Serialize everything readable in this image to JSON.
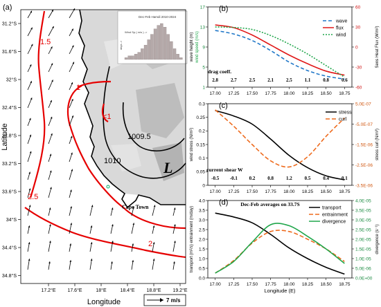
{
  "panels": {
    "a": {
      "label": "(a)",
      "xlabel": "Longitude",
      "ylabel": "Latitude",
      "xticks": [
        "17.2°E",
        "17.6°E",
        "18°E",
        "18.4°E",
        "18.8°E",
        "19.2°E"
      ],
      "yticks": [
        "31.2°S",
        "31.6°S",
        "32°S",
        "32.4°S",
        "32.8°S",
        "33.2°S",
        "33.6°S",
        "34°S",
        "34.4°S",
        "34.8°S"
      ],
      "contour_labels": [
        "1.5",
        "1",
        "<1",
        "2.5",
        "2",
        "1010",
        "1009.5"
      ],
      "low_label": "L",
      "place": "Cape Town",
      "scale_label": "7 m/s",
      "inset": {
        "title": "Dec-Feb Hamdi 2010-2024",
        "xlabel": "Wind Sp  ( m/s ) ->",
        "ylabel": "days ->"
      }
    },
    "b": {
      "label": "(b)",
      "drag_title": "drag coeff.",
      "drag_values": [
        "2.8",
        "2.7",
        "2.5",
        "2.1",
        "2.5",
        "1.1",
        "0.8",
        "0.6"
      ]
    },
    "c": {
      "label": "(c)",
      "shear_title": "current shear W",
      "shear_values": [
        "-0.5",
        "-0.1",
        "0.2",
        "0.8",
        "1.2",
        "0.5",
        "0.4",
        "0.1"
      ]
    },
    "d": {
      "label": "(d)",
      "title": "Dec-Feb averages on 33.7S"
    }
  },
  "chart_data": [
    {
      "type": "line",
      "panel": "b",
      "x": [
        17.0,
        17.25,
        17.5,
        17.75,
        18.0,
        18.25,
        18.5,
        18.75
      ],
      "xlim": [
        16.9,
        18.85
      ],
      "xticks": [
        "17.00",
        "17.25",
        "17.50",
        "17.75",
        "18.00",
        "18.25",
        "18.50",
        "18.75"
      ],
      "ylabel_left": "wave height (m)",
      "ylabel_left2": "wind speed (m/s)",
      "ylabel_right": "Sens Heat Flux (W/m²)",
      "ylim_left": [
        1,
        17
      ],
      "yticks_left": [
        "1",
        "5",
        "9",
        "13",
        "17"
      ],
      "ylim_right": [
        -60,
        60
      ],
      "yticks_right": [
        "-60",
        "-30",
        "0",
        "30",
        "60"
      ],
      "series": [
        {
          "name": "wave",
          "axis": "left",
          "color": "#1f77c8",
          "dash": "5,3",
          "values": [
            12.3,
            11.6,
            10.3,
            8.3,
            6.0,
            4.3,
            3.2,
            2.6
          ]
        },
        {
          "name": "flux",
          "axis": "right",
          "color": "#e01818",
          "dash": "",
          "values": [
            33,
            29,
            18,
            3,
            -12,
            -25,
            -36,
            -42
          ]
        },
        {
          "name": "wind",
          "axis": "left",
          "color": "#1fa64a",
          "dash": "2,2",
          "values": [
            13.0,
            12.9,
            12.5,
            11.3,
            9.6,
            7.6,
            5.3,
            3.0
          ]
        }
      ]
    },
    {
      "type": "line",
      "panel": "c",
      "x": [
        17.0,
        17.25,
        17.5,
        17.75,
        18.0,
        18.25,
        18.5,
        18.75
      ],
      "xlim": [
        16.9,
        18.85
      ],
      "xticks": [
        "17.00",
        "17.25",
        "17.50",
        "17.75",
        "18.00",
        "18.25",
        "18.50",
        "18.75"
      ],
      "ylabel_left": "wind stress (N/m²)",
      "ylabel_right": "stress curl (N/m³)",
      "ylim_left": [
        0,
        0.3
      ],
      "yticks_left": [
        "0",
        "0.05",
        "0.1",
        "0.15",
        "0.2",
        "0.25",
        "0.3"
      ],
      "ylim_right": [
        -3.5e-06,
        5e-07
      ],
      "yticks_right": [
        "5.0E-07",
        "-5.0E-07",
        "-1.5E-06",
        "-2.5E-06",
        "-3.5E-06"
      ],
      "series": [
        {
          "name": "stress",
          "axis": "left",
          "color": "#000000",
          "dash": "",
          "values": [
            0.275,
            0.255,
            0.225,
            0.17,
            0.11,
            0.065,
            0.035,
            0.02
          ]
        },
        {
          "name": "curl",
          "axis": "right",
          "color": "#ee6a1c",
          "dash": "6,3",
          "values": [
            2e-07,
            -6e-07,
            -1.5e-06,
            -2.3e-06,
            -2.6e-06,
            -2.1e-06,
            -1.1e-06,
            -2e-07
          ]
        }
      ]
    },
    {
      "type": "line",
      "panel": "d",
      "x": [
        17.0,
        17.25,
        17.5,
        17.75,
        18.0,
        18.25,
        18.5,
        18.75
      ],
      "xlim": [
        16.9,
        18.85
      ],
      "xticks": [
        "17.00",
        "17.25",
        "17.50",
        "17.75",
        "18.00",
        "18.25",
        "18.50",
        "18.75"
      ],
      "xlabel": "Longitude (E)",
      "ylabel_left": "transport (m²/s) entrainment (m/day)",
      "ylabel_right": "divergence (s⁻¹)",
      "ylim_left": [
        0,
        4
      ],
      "yticks_left": [
        "0.0",
        "0.5",
        "1.0",
        "1.5",
        "2.0",
        "2.5",
        "3.0",
        "3.5",
        "4.0"
      ],
      "ylim_right": [
        0,
        4e-05
      ],
      "yticks_right": [
        "0.0E+00",
        "5.0E-06",
        "1.0E-05",
        "1.5E-05",
        "2.0E-05",
        "2.5E-05",
        "3.0E-05",
        "3.5E-05",
        "4.0E-05"
      ],
      "series": [
        {
          "name": "transport",
          "axis": "left",
          "color": "#000000",
          "dash": "",
          "values": [
            3.35,
            3.15,
            2.85,
            2.25,
            1.55,
            1.0,
            0.55,
            0.2
          ]
        },
        {
          "name": "entrainment",
          "axis": "left",
          "color": "#ee6a1c",
          "dash": "6,3",
          "values": [
            0.25,
            0.9,
            1.8,
            2.4,
            2.4,
            2.0,
            1.5,
            0.85
          ]
        },
        {
          "name": "divergence",
          "axis": "right",
          "color": "#1fa64a",
          "dash": "",
          "values": [
            2.5e-06,
            8.5e-06,
            1.85e-05,
            2.75e-05,
            2.7e-05,
            2.15e-05,
            1.5e-05,
            7.5e-06
          ]
        }
      ]
    },
    {
      "type": "bar",
      "panel": "a-inset",
      "values": [
        0.5,
        1,
        1,
        1.5,
        2,
        3,
        4,
        5.5,
        7,
        8.5,
        9.5,
        10,
        9,
        7,
        5,
        3,
        1.5,
        0.5
      ]
    }
  ]
}
